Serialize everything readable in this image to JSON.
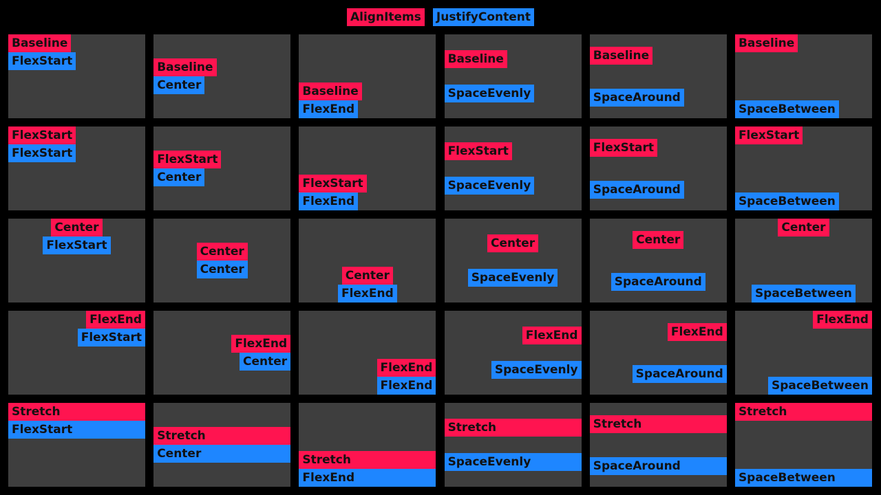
{
  "legend": {
    "align_items_label": "AlignItems",
    "justify_content_label": "JustifyContent"
  },
  "colors": {
    "background": "#000000",
    "cell": "#3e3e3e",
    "align_items_tag": "#ff1450",
    "justify_content_tag": "#1e86ff",
    "tag_text": "#111111"
  },
  "rows": [
    {
      "align_items": "Baseline",
      "cells": [
        {
          "align": "Baseline",
          "justify": "FlexStart"
        },
        {
          "align": "Baseline",
          "justify": "Center"
        },
        {
          "align": "Baseline",
          "justify": "FlexEnd"
        },
        {
          "align": "Baseline",
          "justify": "SpaceEvenly"
        },
        {
          "align": "Baseline",
          "justify": "SpaceAround"
        },
        {
          "align": "Baseline",
          "justify": "SpaceBetween"
        }
      ]
    },
    {
      "align_items": "FlexStart",
      "cells": [
        {
          "align": "FlexStart",
          "justify": "FlexStart"
        },
        {
          "align": "FlexStart",
          "justify": "Center"
        },
        {
          "align": "FlexStart",
          "justify": "FlexEnd"
        },
        {
          "align": "FlexStart",
          "justify": "SpaceEvenly"
        },
        {
          "align": "FlexStart",
          "justify": "SpaceAround"
        },
        {
          "align": "FlexStart",
          "justify": "SpaceBetween"
        }
      ]
    },
    {
      "align_items": "Center",
      "cells": [
        {
          "align": "Center",
          "justify": "FlexStart"
        },
        {
          "align": "Center",
          "justify": "Center"
        },
        {
          "align": "Center",
          "justify": "FlexEnd"
        },
        {
          "align": "Center",
          "justify": "SpaceEvenly"
        },
        {
          "align": "Center",
          "justify": "SpaceAround"
        },
        {
          "align": "Center",
          "justify": "SpaceBetween"
        }
      ]
    },
    {
      "align_items": "FlexEnd",
      "cells": [
        {
          "align": "FlexEnd",
          "justify": "FlexStart"
        },
        {
          "align": "FlexEnd",
          "justify": "Center"
        },
        {
          "align": "FlexEnd",
          "justify": "FlexEnd"
        },
        {
          "align": "FlexEnd",
          "justify": "SpaceEvenly"
        },
        {
          "align": "FlexEnd",
          "justify": "SpaceAround"
        },
        {
          "align": "FlexEnd",
          "justify": "SpaceBetween"
        }
      ]
    },
    {
      "align_items": "Stretch",
      "cells": [
        {
          "align": "Stretch",
          "justify": "FlexStart"
        },
        {
          "align": "Stretch",
          "justify": "Center"
        },
        {
          "align": "Stretch",
          "justify": "FlexEnd"
        },
        {
          "align": "Stretch",
          "justify": "SpaceEvenly"
        },
        {
          "align": "Stretch",
          "justify": "SpaceAround"
        },
        {
          "align": "Stretch",
          "justify": "SpaceBetween"
        }
      ]
    }
  ]
}
